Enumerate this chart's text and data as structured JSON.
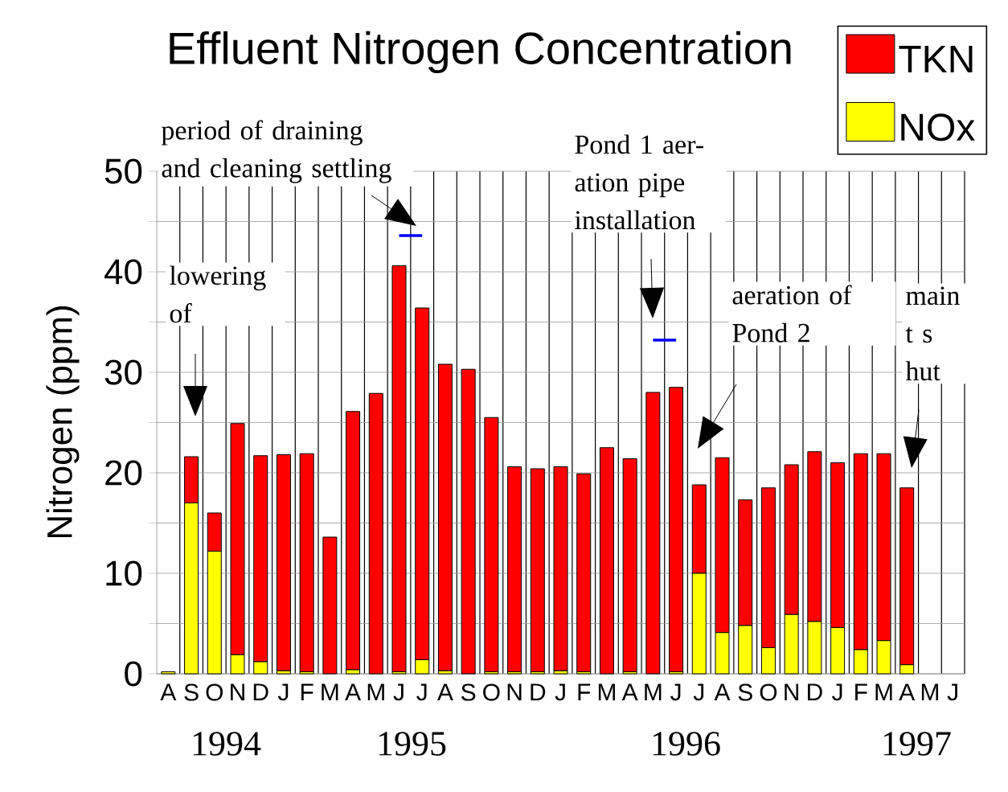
{
  "chart_data": {
    "type": "bar",
    "title": "Effluent Nitrogen Concentration",
    "ylabel": "Nitrogen (ppm)",
    "categories": [
      "A",
      "S",
      "O",
      "N",
      "D",
      "J",
      "F",
      "M",
      "A",
      "M",
      "J",
      "J",
      "A",
      "S",
      "O",
      "N",
      "D",
      "J",
      "F",
      "M",
      "A",
      "M",
      "J",
      "J",
      "A",
      "S",
      "O",
      "N",
      "D",
      "J",
      "F",
      "M",
      "A",
      "M",
      "J"
    ],
    "stacked": true,
    "grid": true,
    "legend": "top right",
    "ylim": [
      0,
      50
    ],
    "yticks": [
      0,
      {
        "value": 5,
        "label": null
      },
      10,
      {
        "value": 15,
        "label": null
      },
      20,
      {
        "value": 25,
        "label": null
      },
      30,
      {
        "value": 35,
        "label": null
      },
      40,
      {
        "value": 45,
        "label": null
      },
      50
    ],
    "series": [
      {
        "name": "NOx",
        "color": "#ffff00",
        "values": [
          0.2,
          17.0,
          12.2,
          1.9,
          1.2,
          0.3,
          0.2,
          0,
          0.4,
          0,
          0.2,
          1.4,
          0.3,
          0,
          0.2,
          0.2,
          0.2,
          0.3,
          0.2,
          0,
          0.2,
          0,
          0.2,
          10.0,
          4.1,
          4.8,
          2.6,
          5.9,
          5.2,
          4.6,
          2.4,
          3.3,
          0.9,
          null,
          null
        ]
      },
      {
        "name": "TKN",
        "color": "#ff0000",
        "values": [
          0,
          4.6,
          3.8,
          23.0,
          20.5,
          21.5,
          21.7,
          13.6,
          25.7,
          27.9,
          40.4,
          35.0,
          30.5,
          30.3,
          25.3,
          20.4,
          20.2,
          20.3,
          19.7,
          22.5,
          21.2,
          28.0,
          28.3,
          8.8,
          17.4,
          12.5,
          15.9,
          14.9,
          16.9,
          16.4,
          19.5,
          18.6,
          17.6,
          null,
          null
        ]
      },
      {
        "type": "line",
        "color": "#0000ff",
        "values": [
          null,
          null,
          null,
          null,
          null,
          null,
          null,
          null,
          null,
          null,
          43.6,
          43.6,
          null,
          null,
          null,
          null,
          null,
          null,
          null,
          null,
          null,
          null,
          null,
          null,
          null,
          null,
          null,
          null,
          null,
          null,
          null,
          null,
          null,
          null,
          null
        ]
      },
      {
        "type": "line",
        "color": "#0000ff",
        "values": [
          null,
          null,
          null,
          null,
          null,
          null,
          null,
          null,
          null,
          null,
          null,
          null,
          null,
          null,
          null,
          null,
          null,
          null,
          null,
          null,
          null,
          33.2,
          33.2,
          null,
          null,
          null,
          null,
          null,
          null,
          null,
          null,
          null,
          null,
          null,
          null
        ]
      }
    ],
    "annotations": [
      "period of draining and cleaning settling",
      "Pond 1 aer-ation pipe installation",
      "lowering of",
      "aeration of Pond 2",
      "main t s hut",
      "1994",
      "1995",
      "1996",
      "1997"
    ]
  }
}
